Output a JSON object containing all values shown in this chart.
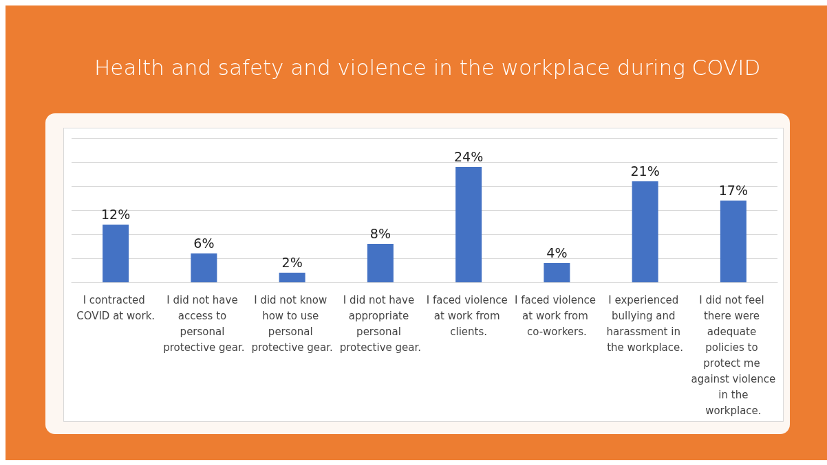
{
  "chart_data": {
    "type": "bar",
    "title": "Health and safety and violence in the workplace during COVID",
    "categories": [
      "I contracted COVID at work.",
      "I did not have access to personal protective gear.",
      "I did not know how to use personal protective gear.",
      "I did not have appropriate personal protective gear.",
      "I faced violence at work from clients.",
      "I faced violence at work from co-workers.",
      "I experienced bullying and harassment in the workplace.",
      "I did not feel there were adequate policies to protect me against violence in the workplace."
    ],
    "values": [
      12,
      6,
      2,
      8,
      24,
      4,
      21,
      17
    ],
    "value_labels": [
      "12%",
      "6%",
      "2%",
      "8%",
      "24%",
      "4%",
      "21%",
      "17%"
    ],
    "color": "#4472c4",
    "ylim": [
      0,
      30
    ],
    "yticks": [
      {
        "value": 0,
        "label": null
      },
      {
        "value": 5,
        "label": null
      },
      {
        "value": 10,
        "label": null
      },
      {
        "value": 15,
        "label": null
      },
      {
        "value": 20,
        "label": null
      },
      {
        "value": 25,
        "label": null
      },
      {
        "value": 30,
        "label": null
      }
    ],
    "grid": "y",
    "tick_labels": "x"
  }
}
